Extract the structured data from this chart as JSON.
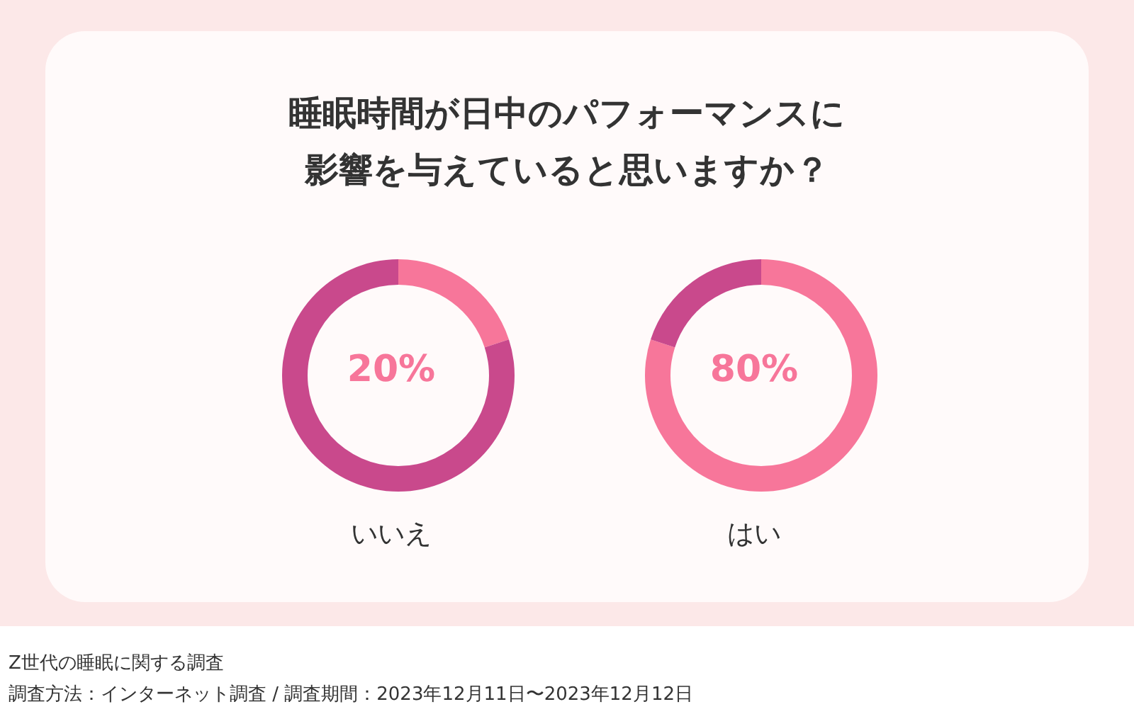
{
  "chart_data": [
    {
      "type": "donut",
      "title": "睡眠時間が日中のパフォーマンスに影響を与えていると思いますか？",
      "xlabel": "いいえ",
      "categories": [
        null,
        null
      ],
      "values": [
        20,
        80
      ],
      "colors": [
        "#f7769a",
        "#c9498c"
      ],
      "annotations": [
        "20%",
        "Z世代の睡眠に関する調査",
        "調査方法：インターネット調査 / 調査期間：2023年12月11日〜2023年12月12日"
      ]
    },
    {
      "type": "donut",
      "xlabel": "はい",
      "categories": [
        null,
        null
      ],
      "values": [
        80,
        20
      ],
      "colors": [
        "#f7769a",
        "#c9498c"
      ],
      "annotations": [
        "80%"
      ]
    }
  ]
}
